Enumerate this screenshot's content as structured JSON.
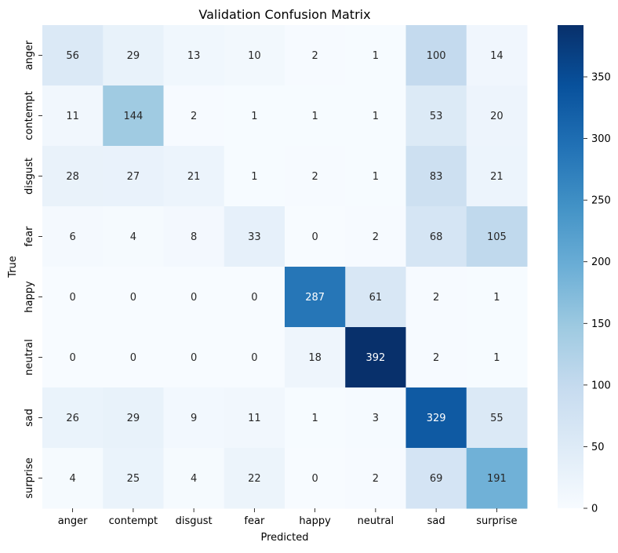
{
  "chart_data": {
    "type": "heatmap",
    "title": "Validation Confusion Matrix",
    "xlabel": "Predicted",
    "ylabel": "True",
    "x_categories": [
      "anger",
      "contempt",
      "disgust",
      "fear",
      "happy",
      "neutral",
      "sad",
      "surprise"
    ],
    "y_categories": [
      "anger",
      "contempt",
      "disgust",
      "fear",
      "happy",
      "neutral",
      "sad",
      "surprise"
    ],
    "values": [
      [
        56,
        29,
        13,
        10,
        2,
        1,
        100,
        14
      ],
      [
        11,
        144,
        2,
        1,
        1,
        1,
        53,
        20
      ],
      [
        28,
        27,
        21,
        1,
        2,
        1,
        83,
        21
      ],
      [
        6,
        4,
        8,
        33,
        0,
        2,
        68,
        105
      ],
      [
        0,
        0,
        0,
        0,
        287,
        61,
        2,
        1
      ],
      [
        0,
        0,
        0,
        0,
        18,
        392,
        2,
        1
      ],
      [
        26,
        29,
        9,
        11,
        1,
        3,
        329,
        55
      ],
      [
        4,
        25,
        4,
        22,
        0,
        2,
        69,
        191
      ]
    ],
    "colormap": "Blues",
    "colorbar": {
      "min": 0,
      "max": 392,
      "ticks": [
        0,
        50,
        100,
        150,
        200,
        250,
        300,
        350
      ]
    },
    "grid": false
  }
}
